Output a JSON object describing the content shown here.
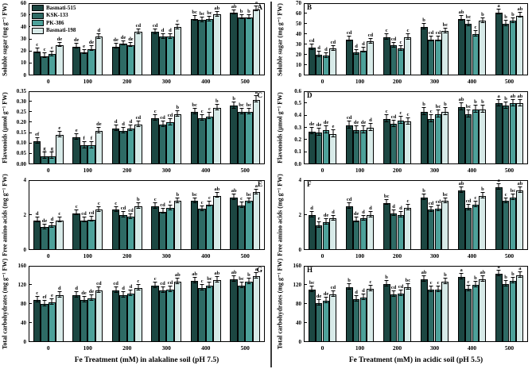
{
  "figure": {
    "series_names": [
      "Basmati-515",
      "KSK-133",
      "PK-386",
      "Basmati-198"
    ],
    "series_colors": [
      "#1c4742",
      "#2e6b65",
      "#4da19a",
      "#d7eae8"
    ],
    "x_categories": [
      "0",
      "100",
      "200",
      "300",
      "400",
      "500"
    ],
    "xlabel_left": "Fe Treatment (mM) in alakaline soil (pH 7.5)",
    "xlabel_right": "Fe Treatment (mM) in acidic soil (pH 5.5)",
    "axis_color": "#000000",
    "background": "#ffffff"
  },
  "chart_data": [
    {
      "type": "bar",
      "panel_letter": "A",
      "letter_side": "right",
      "soil": "alkaline",
      "ylabel": "Soluble sugar (mg g⁻¹ FW)",
      "ylim": [
        0,
        60
      ],
      "yticks": [
        "0",
        "10",
        "20",
        "30",
        "40",
        "50",
        "60"
      ],
      "categories": [
        "0",
        "100",
        "200",
        "300",
        "400",
        "500"
      ],
      "error_bar": 1.5,
      "has_legend": true,
      "series": [
        {
          "name": "Basmati-515",
          "values": [
            20,
            24,
            24,
            36,
            47,
            52
          ],
          "letters": [
            "c",
            "de",
            "de",
            "cd",
            "bc",
            "ab"
          ]
        },
        {
          "name": "KSK-133",
          "values": [
            16,
            19,
            26.5,
            32,
            46,
            48
          ],
          "letters": [
            "c",
            "e",
            "de",
            "d",
            "bc",
            "b"
          ]
        },
        {
          "name": "PK-386",
          "values": [
            17.5,
            22,
            25,
            32,
            46.5,
            48
          ],
          "letters": [
            "c",
            "de",
            "de",
            "d",
            "bc",
            "b"
          ]
        },
        {
          "name": "Basmati-198",
          "values": [
            25,
            32,
            36,
            40,
            50.5,
            55
          ],
          "letters": [
            "de",
            "d",
            "cd",
            "c",
            "ab",
            "a"
          ]
        }
      ]
    },
    {
      "type": "bar",
      "panel_letter": "B",
      "letter_side": "left",
      "soil": "acidic",
      "ylabel": "Soluble sugar (mg g⁻¹ FW)",
      "ylim": [
        0,
        70
      ],
      "yticks": [
        "0",
        "10",
        "20",
        "30",
        "40",
        "50",
        "60",
        "70"
      ],
      "categories": [
        "0",
        "100",
        "200",
        "300",
        "400",
        "500"
      ],
      "error_bar": 2,
      "has_legend": false,
      "series": [
        {
          "name": "Basmati-515",
          "values": [
            27,
            35,
            37,
            47,
            55,
            61
          ],
          "letters": [
            "cd",
            "cd",
            "c",
            "b",
            "ab",
            "a"
          ]
        },
        {
          "name": "KSK-133",
          "values": [
            20,
            22,
            29,
            35,
            50,
            50
          ],
          "letters": [
            "d",
            "d",
            "cd",
            "cd",
            "bc",
            "b"
          ]
        },
        {
          "name": "PK-386",
          "values": [
            19,
            24,
            26,
            35,
            40,
            53
          ],
          "letters": [
            "d",
            "d",
            "c",
            "cd",
            "c",
            "b"
          ]
        },
        {
          "name": "Basmati-198",
          "values": [
            26,
            33,
            37,
            43,
            53,
            58
          ],
          "letters": [
            "cd",
            "cd",
            "c",
            "bc",
            "b",
            "ab"
          ]
        }
      ]
    },
    {
      "type": "bar",
      "panel_letter": "C",
      "letter_side": "right",
      "soil": "alkaline",
      "ylabel": "Flavonoids (μmol g⁻¹ FW)",
      "ylim": [
        0,
        0.35
      ],
      "yticks": [
        "0.00",
        "0.05",
        "0.10",
        "0.15",
        "0.20",
        "0.25",
        "0.30",
        "0.35"
      ],
      "categories": [
        "0",
        "100",
        "200",
        "300",
        "400",
        "500"
      ],
      "error_bar": 0.012,
      "has_legend": false,
      "series": [
        {
          "name": "Basmati-515",
          "values": [
            0.11,
            0.13,
            0.17,
            0.22,
            0.25,
            0.28
          ],
          "letters": [
            "ef",
            "e",
            "d",
            "c",
            "bc",
            "b"
          ]
        },
        {
          "name": "KSK-133",
          "values": [
            0.04,
            0.09,
            0.16,
            0.19,
            0.22,
            0.25
          ],
          "letters": [
            "g",
            "f",
            "d",
            "cd",
            "c",
            "bc"
          ]
        },
        {
          "name": "PK-386",
          "values": [
            0.04,
            0.09,
            0.17,
            0.2,
            0.23,
            0.25
          ],
          "letters": [
            "g",
            "f",
            "d",
            "cd",
            "c",
            "bc"
          ]
        },
        {
          "name": "Basmati-198",
          "values": [
            0.14,
            0.16,
            0.19,
            0.24,
            0.27,
            0.31
          ],
          "letters": [
            "e",
            "de",
            "cd",
            "b",
            "b",
            "a"
          ]
        }
      ]
    },
    {
      "type": "bar",
      "panel_letter": "D",
      "letter_side": "left",
      "soil": "acidic",
      "ylabel": "Flavonoids (μmol g⁻¹ FW)",
      "ylim": [
        0,
        0.6
      ],
      "yticks": [
        "0.0",
        "0.1",
        "0.2",
        "0.3",
        "0.4",
        "0.5",
        "0.6"
      ],
      "categories": [
        "0",
        "100",
        "200",
        "300",
        "400",
        "500"
      ],
      "error_bar": 0.025,
      "has_legend": false,
      "series": [
        {
          "name": "Basmati-515",
          "values": [
            0.27,
            0.32,
            0.37,
            0.43,
            0.47,
            0.5
          ],
          "letters": [
            "de",
            "cd",
            "c",
            "b",
            "ab",
            "a"
          ]
        },
        {
          "name": "KSK-133",
          "values": [
            0.26,
            0.28,
            0.33,
            0.37,
            0.41,
            0.48
          ],
          "letters": [
            "de",
            "de",
            "cd",
            "c",
            "bc",
            "b"
          ]
        },
        {
          "name": "PK-386",
          "values": [
            0.28,
            0.28,
            0.36,
            0.41,
            0.45,
            0.5
          ],
          "letters": [
            "de",
            "de",
            "c",
            "bc",
            "b",
            "ab"
          ]
        },
        {
          "name": "Basmati-198",
          "values": [
            0.25,
            0.3,
            0.35,
            0.43,
            0.45,
            0.5
          ],
          "letters": [
            "e",
            "d",
            "c",
            "b",
            "b",
            "ab"
          ]
        }
      ]
    },
    {
      "type": "bar",
      "panel_letter": "E",
      "letter_side": "right",
      "soil": "alkaline",
      "ylabel": "Free amino acids (mg g⁻¹ FW)",
      "ylim": [
        0,
        4
      ],
      "yticks": [
        "0",
        "2",
        "4"
      ],
      "categories": [
        "0",
        "100",
        "200",
        "300",
        "400",
        "500"
      ],
      "error_bar": 0.12,
      "has_legend": false,
      "series": [
        {
          "name": "Basmati-515",
          "values": [
            1.7,
            2.1,
            2.3,
            2.5,
            2.8,
            3.0
          ],
          "letters": [
            "d",
            "c",
            "c",
            "c",
            "bc",
            "ab"
          ]
        },
        {
          "name": "KSK-133",
          "values": [
            1.3,
            1.7,
            2.0,
            2.2,
            2.35,
            2.55
          ],
          "letters": [
            "de",
            "cd",
            "cd",
            "cd",
            "c",
            "c"
          ]
        },
        {
          "name": "PK-386",
          "values": [
            1.4,
            1.75,
            1.9,
            2.4,
            2.6,
            2.8
          ],
          "letters": [
            "d",
            "cd",
            "cd",
            "c",
            "c",
            "bc"
          ]
        },
        {
          "name": "Basmati-198",
          "values": [
            1.7,
            2.3,
            2.5,
            2.8,
            3.1,
            3.3
          ],
          "letters": [
            "c",
            "c",
            "b",
            "b",
            "ab",
            "a"
          ]
        }
      ]
    },
    {
      "type": "bar",
      "panel_letter": "F",
      "letter_side": "left",
      "soil": "acidic",
      "ylabel": "Free amino acids (mg g⁻¹ FW)",
      "ylim": [
        0,
        4
      ],
      "yticks": [
        "0",
        "2",
        "4"
      ],
      "categories": [
        "0",
        "100",
        "200",
        "300",
        "400",
        "500"
      ],
      "error_bar": 0.13,
      "has_legend": false,
      "series": [
        {
          "name": "Basmati-515",
          "values": [
            2.0,
            2.5,
            2.7,
            3.0,
            3.4,
            3.6
          ],
          "letters": [
            "d",
            "cd",
            "bc",
            "b",
            "ab",
            "a"
          ]
        },
        {
          "name": "KSK-133",
          "values": [
            1.4,
            1.7,
            2.1,
            2.3,
            2.4,
            2.8
          ],
          "letters": [
            "e",
            "de",
            "d",
            "cd",
            "cd",
            "c"
          ]
        },
        {
          "name": "PK-386",
          "values": [
            1.6,
            1.8,
            2.0,
            2.35,
            2.6,
            3.0
          ],
          "letters": [
            "de",
            "d",
            "d",
            "cd",
            "c",
            "bc"
          ]
        },
        {
          "name": "Basmati-198",
          "values": [
            1.8,
            2.0,
            2.4,
            2.8,
            3.1,
            3.4
          ],
          "letters": [
            "d",
            "d",
            "c",
            "bc",
            "b",
            "ab"
          ]
        }
      ]
    },
    {
      "type": "bar",
      "panel_letter": "G",
      "letter_side": "right",
      "soil": "alkaline",
      "ylabel": "Total carbohydrates (mg g⁻¹ FW)",
      "ylim": [
        0,
        160
      ],
      "yticks": [
        "0",
        "40",
        "80",
        "120",
        "160"
      ],
      "categories": [
        "0",
        "100",
        "200",
        "300",
        "400",
        "500"
      ],
      "error_bar": 5,
      "has_legend": false,
      "series": [
        {
          "name": "Basmati-515",
          "values": [
            89,
            98,
            108,
            119,
            129,
            132
          ],
          "letters": [
            "c",
            "d",
            "cd",
            "c",
            "ab",
            "ab"
          ]
        },
        {
          "name": "KSK-133",
          "values": [
            80,
            88,
            99,
            108,
            114,
            118
          ],
          "letters": [
            "ef",
            "de",
            "d",
            "cd",
            "c",
            "bc"
          ]
        },
        {
          "name": "PK-386",
          "values": [
            84,
            92,
            101,
            110,
            119,
            126
          ],
          "letters": [
            "e",
            "de",
            "d",
            "cd",
            "bc",
            "b"
          ]
        },
        {
          "name": "Basmati-198",
          "values": [
            98,
            109,
            114,
            126,
            130,
            138
          ],
          "letters": [
            "d",
            "cd",
            "c",
            "ab",
            "ab",
            "a"
          ]
        }
      ]
    },
    {
      "type": "bar",
      "panel_letter": "H",
      "letter_side": "left",
      "soil": "acidic",
      "ylabel": "Total carbohydrates (mg g⁻¹ FW)",
      "ylim": [
        0,
        160
      ],
      "yticks": [
        "0",
        "40",
        "80",
        "120",
        "160"
      ],
      "categories": [
        "0",
        "100",
        "200",
        "300",
        "400",
        "500"
      ],
      "error_bar": 5,
      "has_legend": false,
      "series": [
        {
          "name": "Basmati-515",
          "values": [
            110,
            115,
            121,
            132,
            137,
            143
          ],
          "letters": [
            "bc",
            "b",
            "b",
            "ab",
            "a",
            "a"
          ]
        },
        {
          "name": "KSK-133",
          "values": [
            82,
            90,
            100,
            110,
            112,
            122
          ],
          "letters": [
            "de",
            "d",
            "cd",
            "c",
            "c",
            "b"
          ]
        },
        {
          "name": "PK-386",
          "values": [
            86,
            94,
            102,
            110,
            120,
            128
          ],
          "letters": [
            "de",
            "d",
            "cd",
            "c",
            "b",
            "b"
          ]
        },
        {
          "name": "Basmati-198",
          "values": [
            100,
            111,
            115,
            126,
            131,
            140
          ],
          "letters": [
            "cd",
            "c",
            "bc",
            "b",
            "ab",
            "a"
          ]
        }
      ]
    }
  ]
}
